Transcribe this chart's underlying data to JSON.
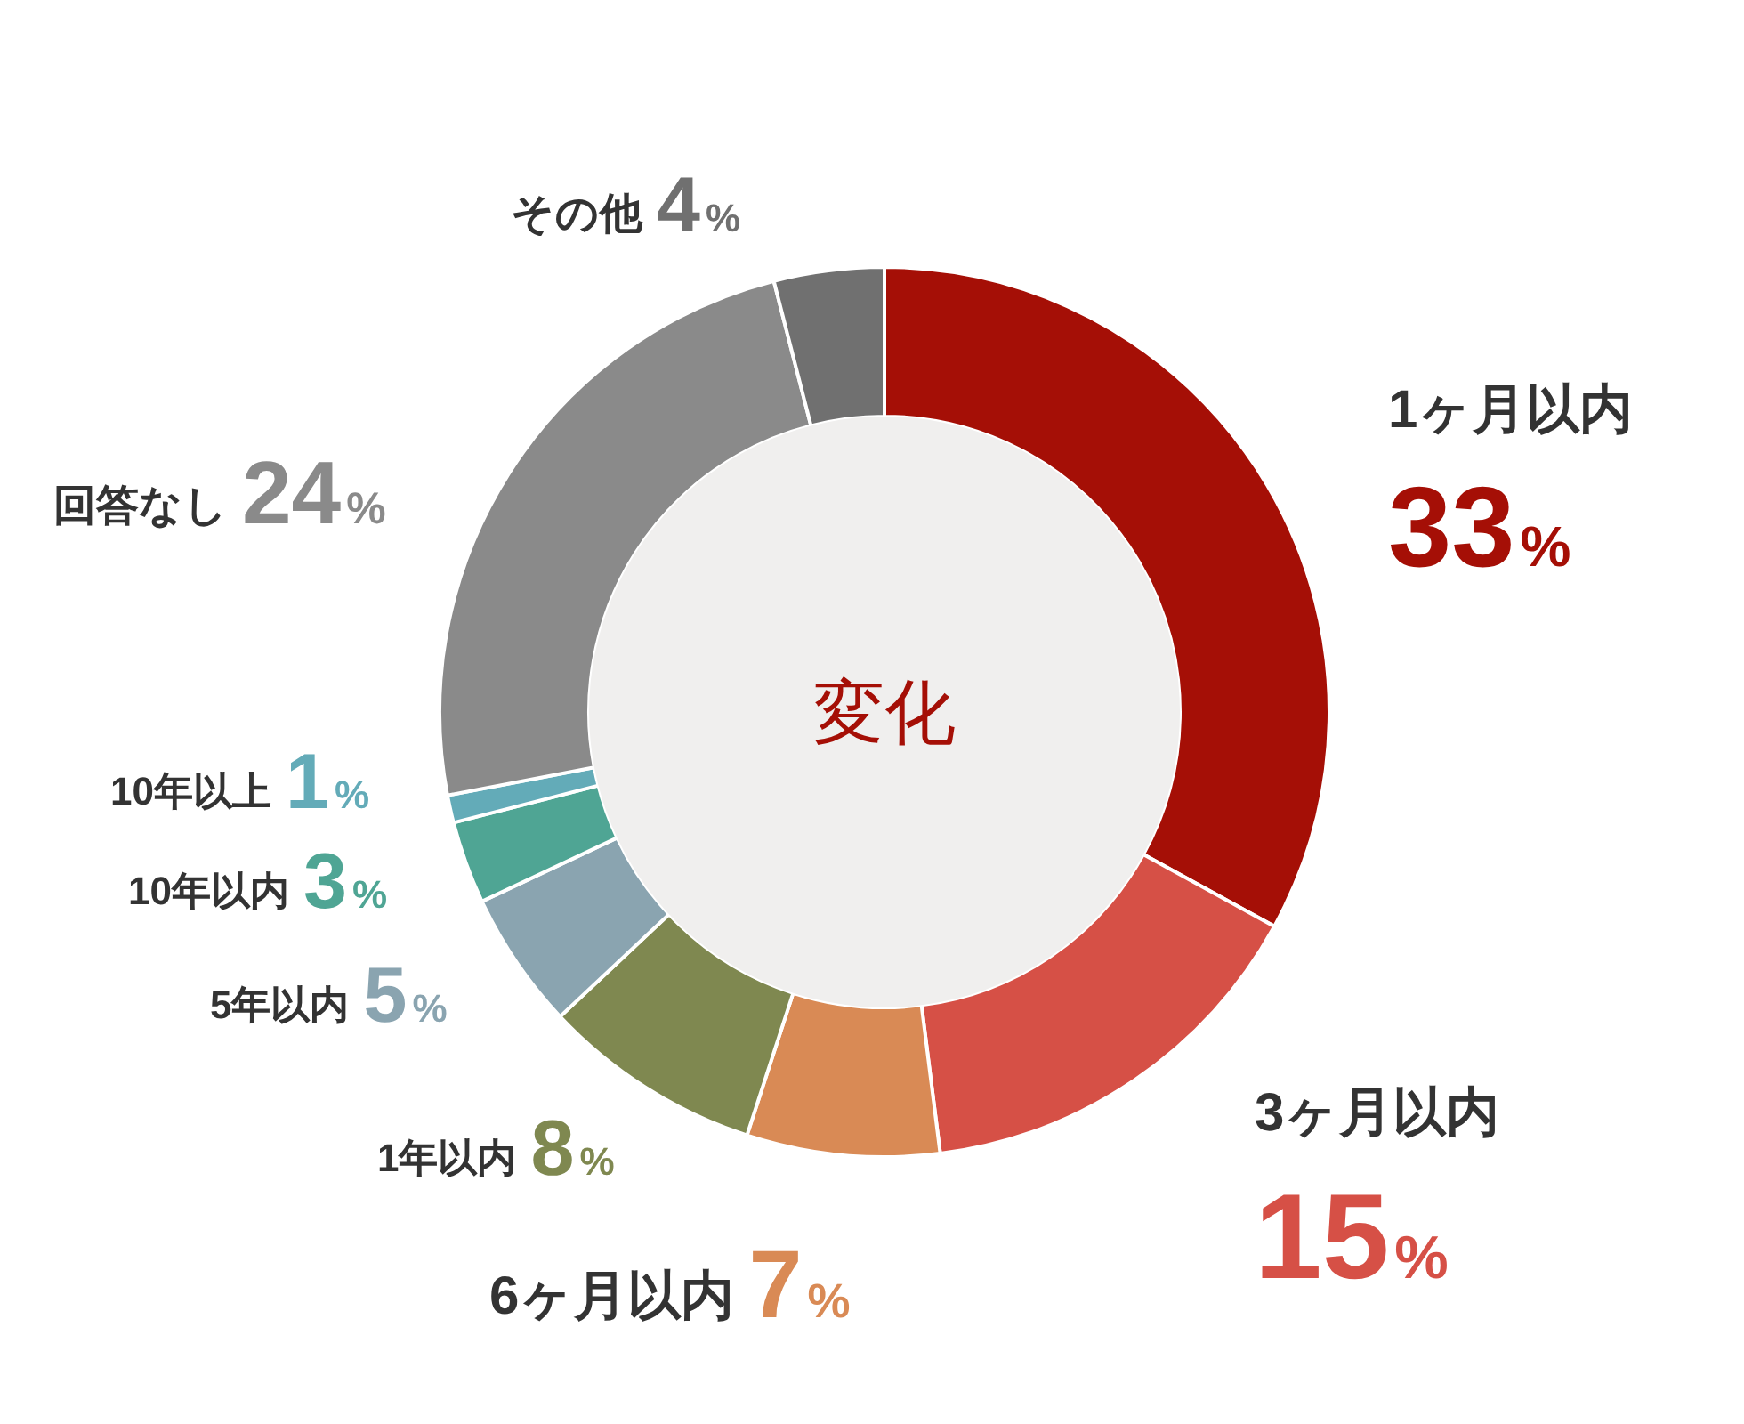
{
  "chart_data": {
    "type": "donut",
    "title": "変化",
    "categories": [
      "1ヶ月以内",
      "3ヶ月以内",
      "6ヶ月以内",
      "1年以内",
      "5年以内",
      "10年以内",
      "10年以上",
      "回答なし",
      "その他"
    ],
    "values": [
      33,
      15,
      7,
      8,
      5,
      3,
      1,
      24,
      4
    ],
    "colors": [
      "#a50f06",
      "#d65046",
      "#d98a55",
      "#7f8850",
      "#8aa4b0",
      "#4fa594",
      "#63abb8",
      "#8a8a8a",
      "#707070"
    ],
    "value_labels": [
      "33%",
      "15%",
      "7%",
      "8%",
      "5%",
      "3%",
      "1%",
      "24%",
      "4%"
    ]
  }
}
